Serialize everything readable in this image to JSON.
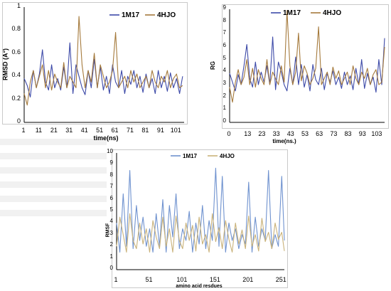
{
  "colors": {
    "series_a": "#3d4aa8",
    "series_b": "#a57a3c",
    "series_a_light": "#6f92cf",
    "series_b_light": "#c9b27a"
  },
  "chart_data": [
    {
      "type": "line",
      "title": "",
      "xlabel": "time(ns)",
      "ylabel": "RMSD (A°)",
      "xlim": [
        1,
        106
      ],
      "ylim": [
        0,
        1
      ],
      "xticks": [
        "1",
        "11",
        "21",
        "31",
        "41",
        "51",
        "61",
        "71",
        "81",
        "91",
        "101"
      ],
      "yticks": [
        "0",
        "0.2",
        "0.4",
        "0.6",
        "0.8",
        "1"
      ],
      "legend_position": "top-right",
      "grid": false,
      "series": [
        {
          "name": "1M17",
          "color": "#3d4aa8",
          "x": [
            1,
            3,
            5,
            7,
            9,
            11,
            13,
            15,
            17,
            19,
            21,
            23,
            25,
            27,
            29,
            31,
            33,
            35,
            37,
            39,
            41,
            43,
            45,
            47,
            49,
            51,
            53,
            55,
            57,
            59,
            61,
            63,
            65,
            67,
            69,
            71,
            73,
            75,
            77,
            79,
            81,
            83,
            85,
            87,
            89,
            91,
            93,
            95,
            97,
            99,
            101,
            103,
            105
          ],
          "y": [
            0.38,
            0.32,
            0.22,
            0.45,
            0.3,
            0.42,
            0.63,
            0.35,
            0.28,
            0.5,
            0.3,
            0.38,
            0.28,
            0.48,
            0.3,
            0.69,
            0.25,
            0.5,
            0.4,
            0.3,
            0.24,
            0.45,
            0.3,
            0.55,
            0.3,
            0.48,
            0.28,
            0.4,
            0.25,
            0.5,
            0.35,
            0.3,
            0.45,
            0.25,
            0.4,
            0.33,
            0.45,
            0.3,
            0.4,
            0.26,
            0.42,
            0.3,
            0.38,
            0.25,
            0.45,
            0.3,
            0.4,
            0.27,
            0.43,
            0.3,
            0.38,
            0.25,
            0.4
          ]
        },
        {
          "name": "4HJO",
          "color": "#a57a3c",
          "x": [
            1,
            3,
            5,
            7,
            9,
            11,
            13,
            15,
            17,
            19,
            21,
            23,
            25,
            27,
            29,
            31,
            33,
            35,
            37,
            39,
            41,
            43,
            45,
            47,
            49,
            51,
            53,
            55,
            57,
            59,
            61,
            63,
            65,
            67,
            69,
            71,
            73,
            75,
            77,
            79,
            81,
            83,
            85,
            87,
            89,
            91,
            93,
            95,
            97,
            99,
            101,
            103,
            105
          ],
          "y": [
            0.25,
            0.15,
            0.35,
            0.45,
            0.3,
            0.4,
            0.5,
            0.3,
            0.45,
            0.28,
            0.42,
            0.35,
            0.3,
            0.52,
            0.3,
            0.4,
            0.35,
            0.3,
            0.92,
            0.5,
            0.3,
            0.45,
            0.35,
            0.6,
            0.3,
            0.5,
            0.4,
            0.3,
            0.35,
            0.45,
            0.78,
            0.3,
            0.35,
            0.4,
            0.3,
            0.45,
            0.35,
            0.42,
            0.3,
            0.35,
            0.4,
            0.3,
            0.45,
            0.35,
            0.3,
            0.4,
            0.35,
            0.45,
            0.3,
            0.38,
            0.42,
            0.3,
            0.32
          ]
        }
      ]
    },
    {
      "type": "line",
      "title": "",
      "xlabel": "time(ns.)",
      "ylabel": "RG",
      "xlim": [
        0,
        108
      ],
      "ylim": [
        0,
        9
      ],
      "xticks": [
        "0",
        "13",
        "23",
        "33",
        "43",
        "53",
        "63",
        "73",
        "83",
        "93",
        "103"
      ],
      "yticks": [
        "0",
        "1",
        "2",
        "3",
        "4",
        "5",
        "6",
        "7",
        "8",
        "9"
      ],
      "legend_position": "top-right",
      "grid": false,
      "series": [
        {
          "name": "1M17",
          "color": "#3d4aa8",
          "x": [
            0,
            2,
            4,
            6,
            8,
            10,
            12,
            14,
            16,
            18,
            20,
            22,
            24,
            26,
            28,
            30,
            32,
            34,
            36,
            38,
            40,
            42,
            44,
            46,
            48,
            50,
            52,
            54,
            56,
            58,
            60,
            62,
            64,
            66,
            68,
            70,
            72,
            74,
            76,
            78,
            80,
            82,
            84,
            86,
            88,
            90,
            92,
            94,
            96,
            98,
            100,
            102,
            104,
            106,
            108
          ],
          "y": [
            3.9,
            3.2,
            2.5,
            3.8,
            3.0,
            4.5,
            6.2,
            3.5,
            2.8,
            4.8,
            3.0,
            4.0,
            3.2,
            4.5,
            3.0,
            6.8,
            2.6,
            4.8,
            4.0,
            3.0,
            2.5,
            4.3,
            3.0,
            5.2,
            3.0,
            4.6,
            2.8,
            3.8,
            2.5,
            4.6,
            3.4,
            3.0,
            4.3,
            2.6,
            3.9,
            3.2,
            4.1,
            3.0,
            3.6,
            2.7,
            4.0,
            3.0,
            3.7,
            2.6,
            4.3,
            3.0,
            5.0,
            2.7,
            3.9,
            3.0,
            3.6,
            2.4,
            5.0,
            3.0,
            6.7
          ]
        },
        {
          "name": "4HJO",
          "color": "#a57a3c",
          "x": [
            0,
            2,
            4,
            6,
            8,
            10,
            12,
            14,
            16,
            18,
            20,
            22,
            24,
            26,
            28,
            30,
            32,
            34,
            36,
            38,
            40,
            42,
            44,
            46,
            48,
            50,
            52,
            54,
            56,
            58,
            60,
            62,
            64,
            66,
            68,
            70,
            72,
            74,
            76,
            78,
            80,
            82,
            84,
            86,
            88,
            90,
            92,
            94,
            96,
            98,
            100,
            102,
            104,
            106,
            108
          ],
          "y": [
            2.8,
            1.6,
            3.2,
            4.2,
            3.0,
            3.6,
            5.0,
            3.0,
            4.3,
            2.8,
            4.2,
            3.5,
            3.0,
            5.0,
            3.0,
            4.0,
            3.5,
            3.0,
            4.5,
            3.2,
            8.9,
            4.5,
            3.0,
            4.0,
            7.1,
            3.3,
            4.5,
            3.9,
            3.0,
            3.5,
            4.3,
            7.6,
            3.0,
            3.5,
            4.0,
            3.0,
            4.4,
            3.5,
            4.1,
            3.0,
            3.5,
            4.0,
            3.0,
            4.5,
            3.5,
            3.0,
            4.0,
            3.5,
            4.3,
            3.0,
            3.8,
            4.2,
            3.0,
            3.2,
            6.0
          ]
        }
      ]
    },
    {
      "type": "line",
      "title": "",
      "xlabel": "amino acid resdues",
      "ylabel": "RMSF",
      "xlim": [
        1,
        255
      ],
      "ylim": [
        0,
        10
      ],
      "xticks": [
        "1",
        "51",
        "101",
        "151",
        "201",
        "251"
      ],
      "yticks": [
        "0",
        "1",
        "2",
        "3",
        "4",
        "5",
        "6",
        "7",
        "8",
        "9",
        "10"
      ],
      "legend_position": "top-center",
      "grid": false,
      "series": [
        {
          "name": "1M17",
          "color": "#6f92cf",
          "x": [
            1,
            6,
            11,
            16,
            21,
            26,
            31,
            36,
            41,
            46,
            51,
            56,
            61,
            66,
            71,
            76,
            81,
            86,
            91,
            96,
            101,
            106,
            111,
            116,
            121,
            126,
            131,
            136,
            141,
            146,
            151,
            156,
            161,
            166,
            171,
            176,
            181,
            186,
            191,
            196,
            201,
            206,
            211,
            216,
            221,
            226,
            231,
            236,
            241,
            246,
            251,
            255
          ],
          "y": [
            4.0,
            1.5,
            6.5,
            2.0,
            8.5,
            1.8,
            5.5,
            2.5,
            4.5,
            2.0,
            3.5,
            1.5,
            4.8,
            2.0,
            6.0,
            1.5,
            5.5,
            2.8,
            6.5,
            1.8,
            3.5,
            2.5,
            5.0,
            1.5,
            4.0,
            2.2,
            5.5,
            1.8,
            4.2,
            2.5,
            8.7,
            2.0,
            8.0,
            1.5,
            4.0,
            2.5,
            3.5,
            1.8,
            3.0,
            2.2,
            7.5,
            1.5,
            4.5,
            2.0,
            3.5,
            2.5,
            8.5,
            1.8,
            3.0,
            2.0,
            8.0,
            2.5
          ]
        },
        {
          "name": "4HJO",
          "color": "#c9b27a",
          "x": [
            1,
            6,
            11,
            16,
            21,
            26,
            31,
            36,
            41,
            46,
            51,
            56,
            61,
            66,
            71,
            76,
            81,
            86,
            91,
            96,
            101,
            106,
            111,
            116,
            121,
            126,
            131,
            136,
            141,
            146,
            151,
            156,
            161,
            166,
            171,
            176,
            181,
            186,
            191,
            196,
            201,
            206,
            211,
            216,
            221,
            226,
            231,
            236,
            241,
            246,
            251,
            255
          ],
          "y": [
            2.0,
            4.5,
            3.0,
            1.5,
            4.8,
            2.5,
            1.8,
            4.0,
            2.2,
            3.5,
            1.5,
            4.2,
            2.8,
            1.8,
            4.5,
            2.0,
            3.5,
            1.5,
            4.6,
            2.5,
            1.8,
            4.0,
            2.5,
            3.8,
            1.6,
            4.5,
            2.2,
            3.0,
            1.5,
            4.8,
            2.4,
            3.6,
            1.8,
            4.2,
            2.6,
            1.5,
            4.0,
            2.2,
            3.4,
            1.8,
            4.6,
            2.0,
            3.0,
            1.6,
            4.4,
            2.4,
            3.2,
            1.8,
            4.0,
            2.6,
            3.2,
            1.6
          ]
        }
      ]
    }
  ]
}
